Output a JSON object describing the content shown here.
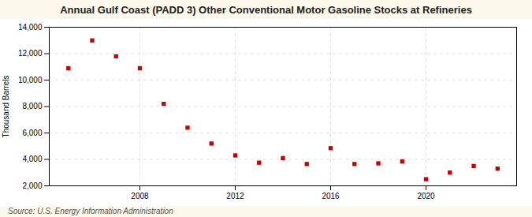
{
  "chart_data": {
    "type": "scatter",
    "title": "Annual Gulf Coast (PADD 3) Other Conventional Motor Gasoline Stocks at Refineries",
    "ylabel": "Thousand Barrels",
    "source": "Source: U.S. Energy Information Administration",
    "x": [
      2005,
      2006,
      2007,
      2008,
      2009,
      2010,
      2011,
      2012,
      2013,
      2014,
      2015,
      2016,
      2017,
      2018,
      2019,
      2020,
      2021,
      2022,
      2023
    ],
    "values": [
      10900,
      13000,
      11800,
      10900,
      8200,
      6400,
      5200,
      4300,
      3750,
      4100,
      3650,
      4850,
      3650,
      3700,
      3850,
      2500,
      3000,
      3500,
      3300
    ],
    "color": "#cc0000",
    "marker": "square",
    "xlim": [
      2004.2,
      2023.8
    ],
    "xticks": [
      2008,
      2012,
      2016,
      2020
    ],
    "ylim": [
      2000,
      14000
    ],
    "yticks": [
      {
        "value": 2000,
        "label": "2,000"
      },
      {
        "value": 4000,
        "label": "4,000"
      },
      {
        "value": 6000,
        "label": "6,000"
      },
      {
        "value": 8000,
        "label": "8,000"
      },
      {
        "value": 10000,
        "label": "10,000"
      },
      {
        "value": 12000,
        "label": "12,000"
      },
      {
        "value": 14000,
        "label": "14,000"
      }
    ],
    "grid": true
  }
}
